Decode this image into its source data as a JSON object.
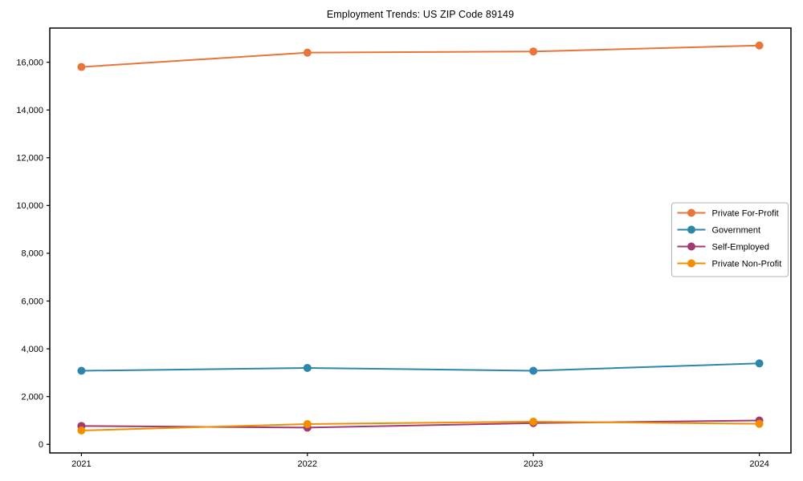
{
  "figure": {
    "background": "#ffffff",
    "axis_color": "#000000",
    "tick_label_color": "#000000",
    "legend_border_color": "#b3b3b3",
    "legend_background": "#ffffff"
  },
  "chart_data": {
    "type": "line",
    "title": "Employment Trends: US ZIP Code 89149",
    "xlabel": "",
    "ylabel": "",
    "x_categories": [
      "2021",
      "2022",
      "2023",
      "2024"
    ],
    "series": [
      {
        "name": "Private For-Profit",
        "color": "#E8763B",
        "values": [
          15800,
          16400,
          16450,
          16700
        ]
      },
      {
        "name": "Government",
        "color": "#2E86AB",
        "values": [
          3080,
          3200,
          3080,
          3390
        ]
      },
      {
        "name": "Self-Employed",
        "color": "#A23B72",
        "values": [
          770,
          700,
          890,
          1000
        ]
      },
      {
        "name": "Private Non-Profit",
        "color": "#F18F01",
        "values": [
          580,
          850,
          950,
          860
        ]
      }
    ],
    "y_ticks": [
      0,
      2000,
      4000,
      6000,
      8000,
      10000,
      12000,
      14000,
      16000
    ],
    "y_tick_labels": [
      "0",
      "2,000",
      "4,000",
      "6,000",
      "8,000",
      "10,000",
      "12,000",
      "14,000",
      "16,000"
    ],
    "ylim": [
      -360,
      17430
    ],
    "grid": false,
    "legend_position": "center right",
    "marker": "circle"
  }
}
